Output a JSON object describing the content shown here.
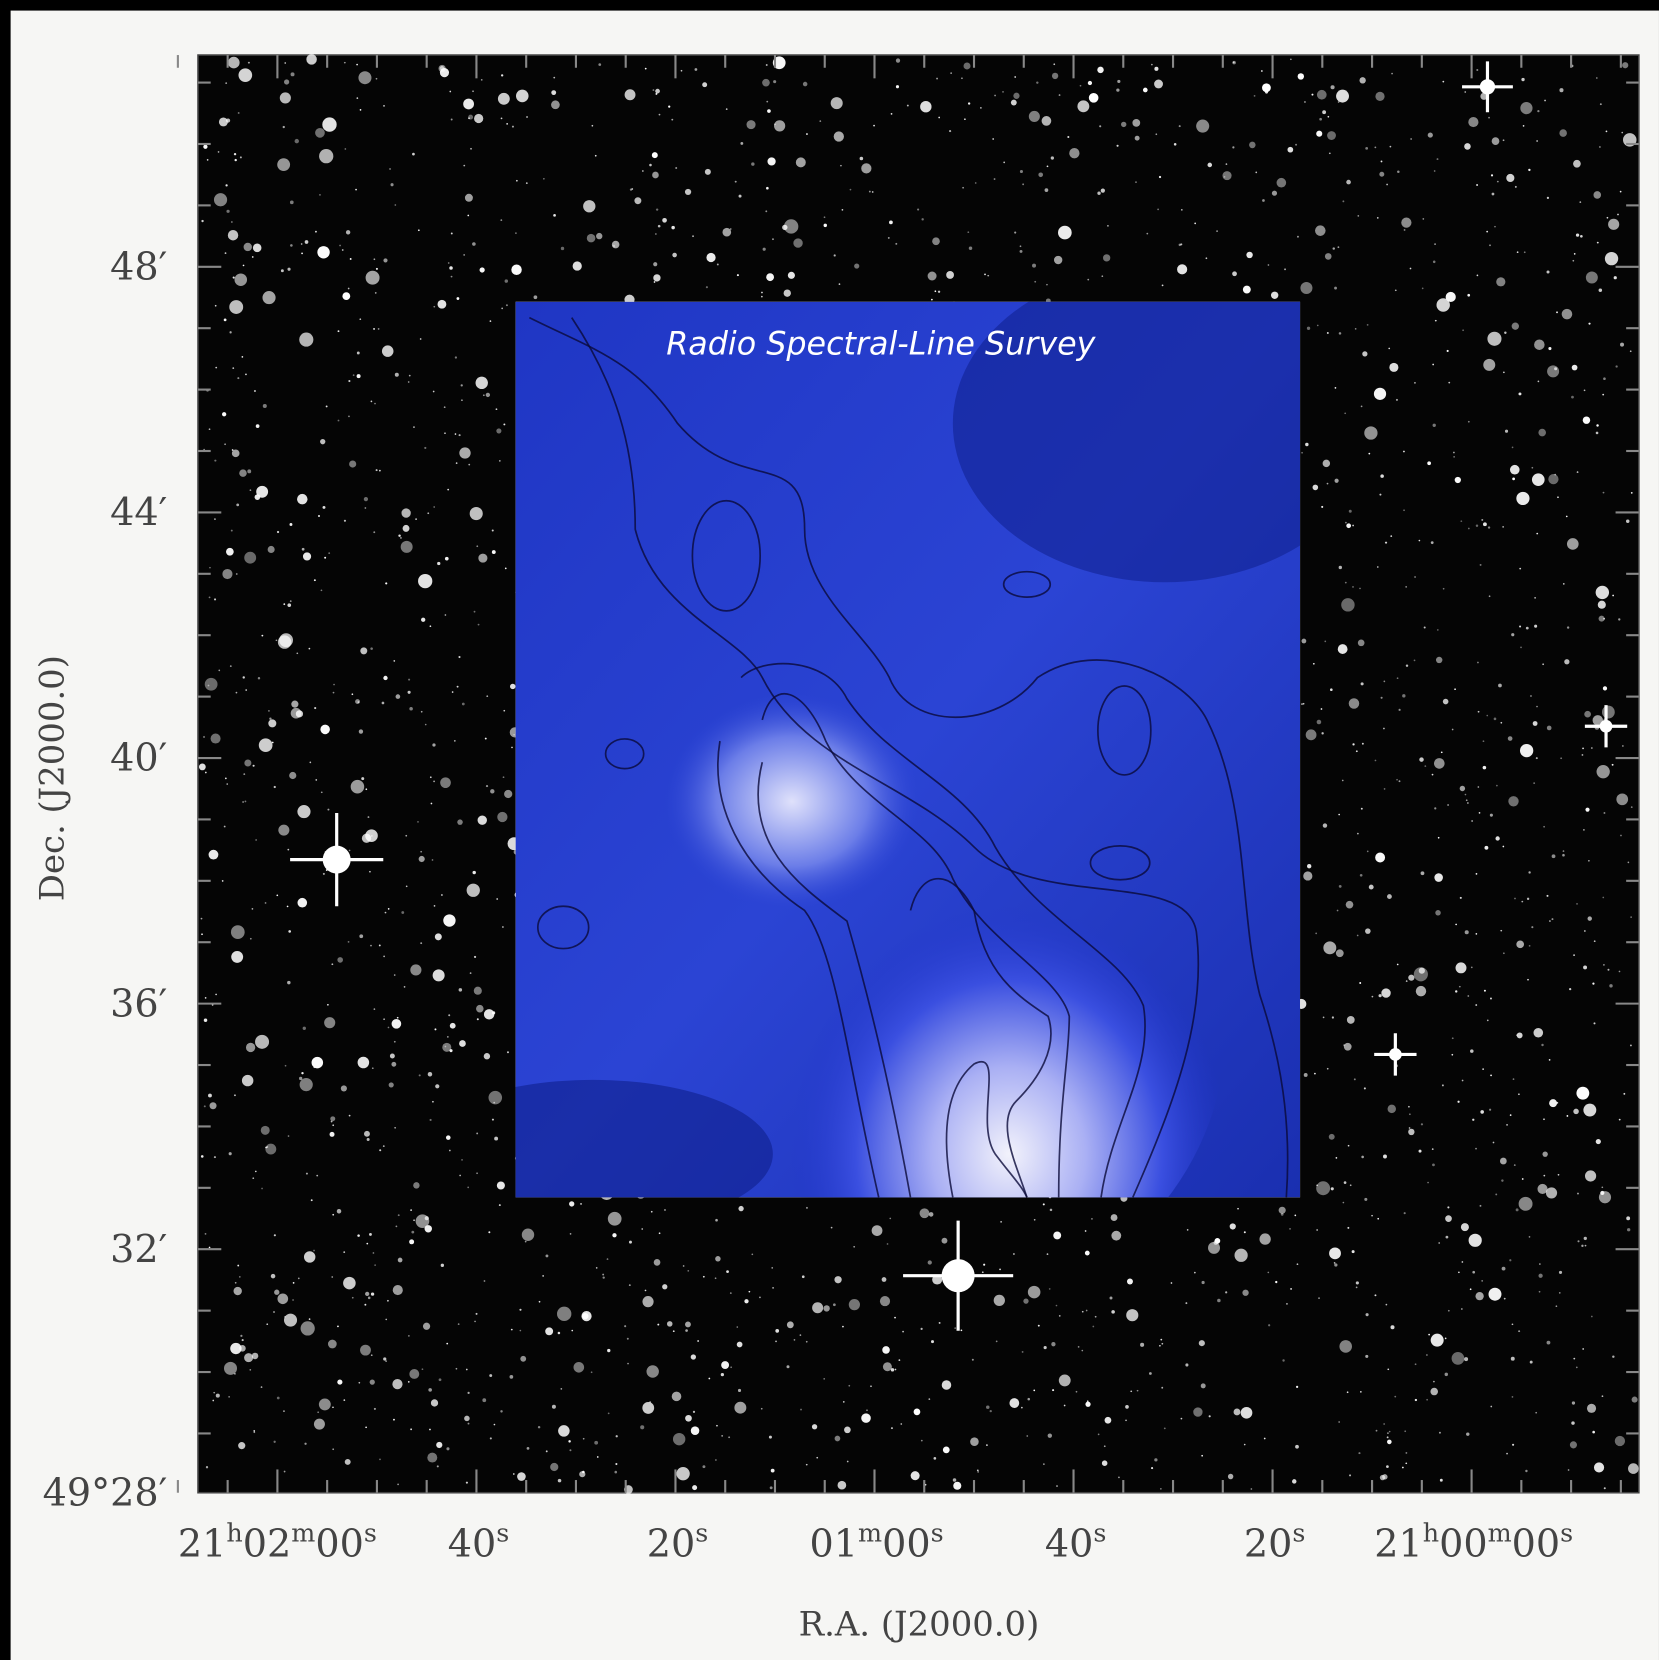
{
  "overlay": {
    "title": "Radio Spectral-Line Survey"
  },
  "axes": {
    "x_label": "R.A.  (J2000.0)",
    "y_label": "Dec.  (J2000.0)",
    "x_ticks": [
      [
        "21",
        "h",
        "02",
        "m",
        "00",
        "s"
      ],
      [
        "40",
        "s"
      ],
      [
        "20",
        "s"
      ],
      [
        "01",
        "m",
        "00",
        "s"
      ],
      [
        "40",
        "s"
      ],
      [
        "20",
        "s"
      ],
      [
        "21",
        "h",
        "00",
        "m",
        "00",
        "s"
      ]
    ],
    "y_ticks": [
      "48′",
      "44′",
      "40′",
      "36′",
      "32′",
      "49°28′"
    ]
  }
}
